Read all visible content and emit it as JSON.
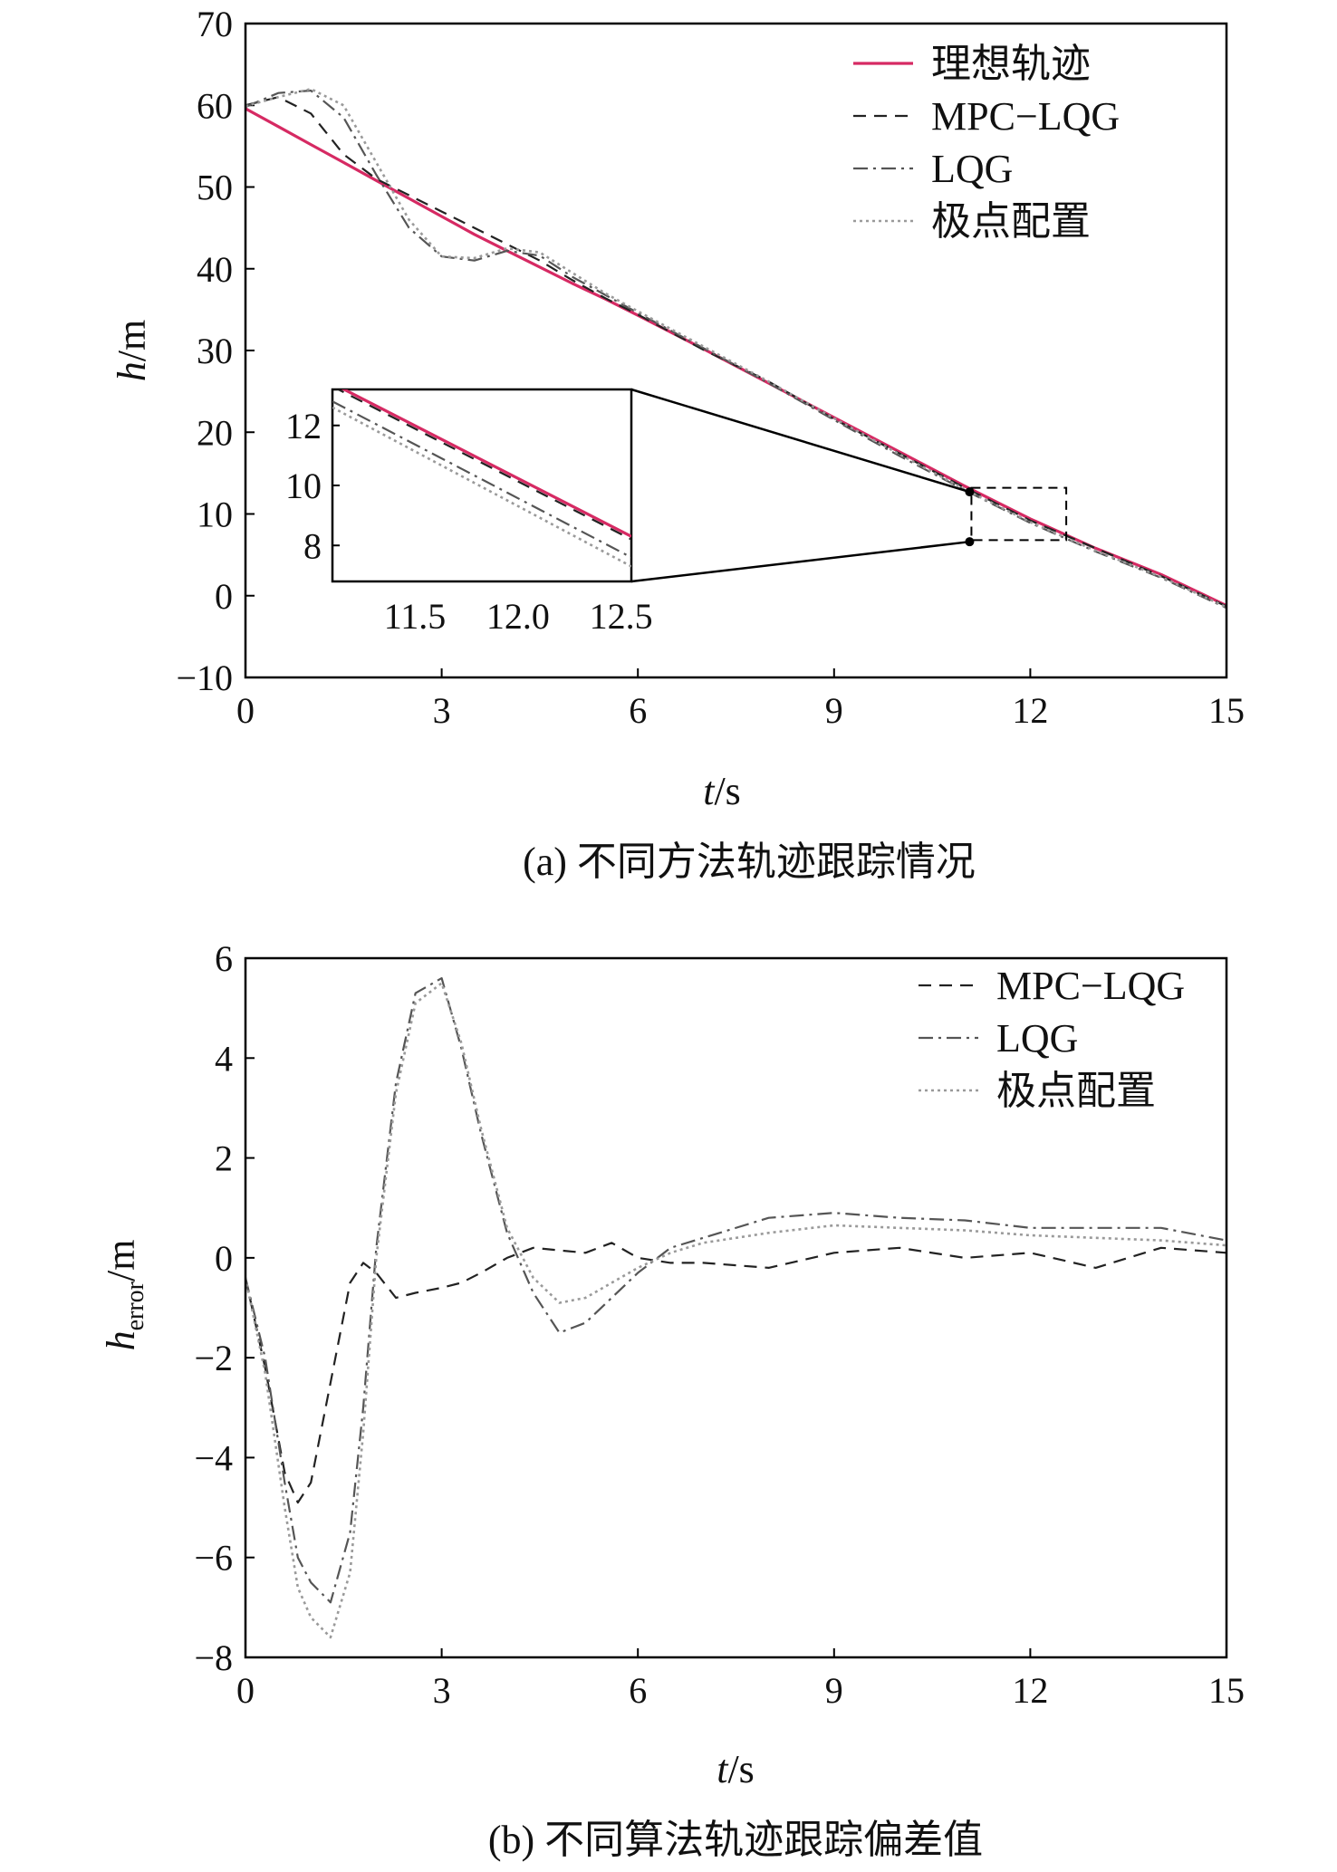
{
  "figure": {
    "panel_a": {
      "caption": "(a) 不同方法轨迹跟踪情况",
      "ylabel": {
        "var": "h",
        "unit": "/m"
      },
      "xlabel": {
        "var": "t",
        "unit": "/s"
      },
      "legend": [
        "理想轨迹",
        "MPC−LQG",
        "LQG",
        "极点配置"
      ],
      "inset": {
        "xticks": [
          "11.5",
          "12.0",
          "12.5"
        ],
        "yticks": [
          "8",
          "10",
          "12"
        ]
      }
    },
    "panel_b": {
      "caption": "(b) 不同算法轨迹跟踪偏差值",
      "ylabel": {
        "var": "h",
        "sub": "error",
        "unit": "/m"
      },
      "xlabel": {
        "var": "t",
        "unit": "/s"
      },
      "legend": [
        "MPC−LQG",
        "LQG",
        "极点配置"
      ]
    }
  },
  "colors": {
    "ideal": "#d62a63",
    "mpc": "#222222",
    "lqg": "#555555",
    "pole": "#9a9a9a",
    "axis": "#000000"
  },
  "chart_data": [
    {
      "type": "line",
      "xlim": [
        0,
        15
      ],
      "ylim": [
        -10,
        70
      ],
      "xticks": [
        0,
        3,
        6,
        9,
        12,
        15
      ],
      "yticks": [
        -10,
        0,
        10,
        20,
        30,
        40,
        50,
        60,
        70
      ],
      "x": [
        0,
        0.5,
        1,
        1.5,
        2,
        2.5,
        3,
        3.5,
        4,
        4.5,
        5,
        5.5,
        6,
        7,
        8,
        9,
        10,
        11,
        12,
        13,
        14,
        15
      ],
      "series": [
        {
          "name": "理想轨迹",
          "values": [
            59.6,
            57.4,
            55.2,
            53.0,
            50.8,
            48.6,
            46.4,
            44.2,
            42.2,
            40.2,
            38.2,
            36.3,
            34.3,
            30.2,
            26.0,
            21.8,
            17.6,
            13.4,
            9.4,
            5.8,
            2.6,
            -1.2
          ]
        },
        {
          "name": "MPC−LQG",
          "values": [
            60.0,
            61.0,
            59.0,
            54.0,
            51.0,
            49.0,
            47.0,
            45.0,
            43.0,
            41.0,
            38.6,
            36.4,
            34.4,
            30.1,
            26.2,
            21.6,
            17.4,
            13.2,
            9.2,
            5.8,
            2.4,
            -1.3
          ]
        },
        {
          "name": "LQG",
          "values": [
            59.8,
            61.5,
            61.8,
            58.5,
            51.5,
            45.0,
            41.5,
            41.0,
            42.2,
            41.6,
            39.0,
            36.8,
            34.6,
            30.3,
            26.0,
            21.5,
            17.1,
            12.9,
            8.9,
            5.4,
            2.2,
            -1.5
          ]
        },
        {
          "name": "极点配置",
          "values": [
            59.9,
            61.0,
            62.0,
            60.0,
            53.0,
            46.0,
            41.5,
            41.3,
            42.5,
            42.0,
            39.5,
            37.0,
            34.8,
            30.5,
            26.2,
            21.7,
            17.3,
            13.0,
            9.0,
            5.5,
            2.3,
            -1.4
          ]
        }
      ],
      "inset": {
        "xlim": [
          11.1,
          12.55
        ],
        "ylim": [
          6.8,
          13.2
        ],
        "x": [
          11.1,
          12.55
        ],
        "series": [
          {
            "name": "理想轨迹",
            "values": [
              13.4,
              8.3
            ]
          },
          {
            "name": "MPC−LQG",
            "values": [
              13.3,
              8.2
            ]
          },
          {
            "name": "LQG",
            "values": [
              12.8,
              7.6
            ]
          },
          {
            "name": "极点配置",
            "values": [
              12.6,
              7.3
            ]
          }
        ]
      }
    },
    {
      "type": "line",
      "xlim": [
        0,
        15
      ],
      "ylim": [
        -8,
        6
      ],
      "xticks": [
        0,
        3,
        6,
        9,
        12,
        15
      ],
      "yticks": [
        -8,
        -6,
        -4,
        -2,
        0,
        2,
        4,
        6
      ],
      "x": [
        0,
        0.3,
        0.6,
        0.8,
        1.0,
        1.3,
        1.6,
        1.8,
        2.0,
        2.3,
        2.6,
        3.0,
        3.3,
        3.6,
        4.0,
        4.4,
        4.8,
        5.2,
        5.6,
        6.0,
        6.5,
        7,
        8,
        9,
        10,
        11,
        12,
        13,
        14,
        15
      ],
      "series": [
        {
          "name": "MPC−LQG",
          "values": [
            -0.4,
            -2.2,
            -4.3,
            -4.9,
            -4.5,
            -2.5,
            -0.5,
            -0.1,
            -0.3,
            -0.8,
            -0.7,
            -0.6,
            -0.5,
            -0.3,
            0.0,
            0.2,
            0.15,
            0.1,
            0.3,
            0.0,
            -0.1,
            -0.1,
            -0.2,
            0.1,
            0.2,
            0.0,
            0.1,
            -0.2,
            0.2,
            0.1
          ]
        },
        {
          "name": "LQG",
          "values": [
            -0.4,
            -2.0,
            -4.5,
            -6.0,
            -6.5,
            -6.9,
            -5.5,
            -3.0,
            0.2,
            3.5,
            5.3,
            5.6,
            4.2,
            2.5,
            0.5,
            -0.7,
            -1.5,
            -1.3,
            -0.8,
            -0.3,
            0.2,
            0.4,
            0.8,
            0.9,
            0.8,
            0.75,
            0.6,
            0.6,
            0.6,
            0.35
          ]
        },
        {
          "name": "极点配置",
          "values": [
            -0.4,
            -2.3,
            -5.0,
            -6.6,
            -7.2,
            -7.6,
            -6.3,
            -3.5,
            0.0,
            3.3,
            5.1,
            5.5,
            4.3,
            2.6,
            0.6,
            -0.4,
            -0.9,
            -0.8,
            -0.5,
            -0.2,
            0.1,
            0.3,
            0.5,
            0.65,
            0.6,
            0.55,
            0.45,
            0.4,
            0.35,
            0.25
          ]
        }
      ]
    }
  ]
}
